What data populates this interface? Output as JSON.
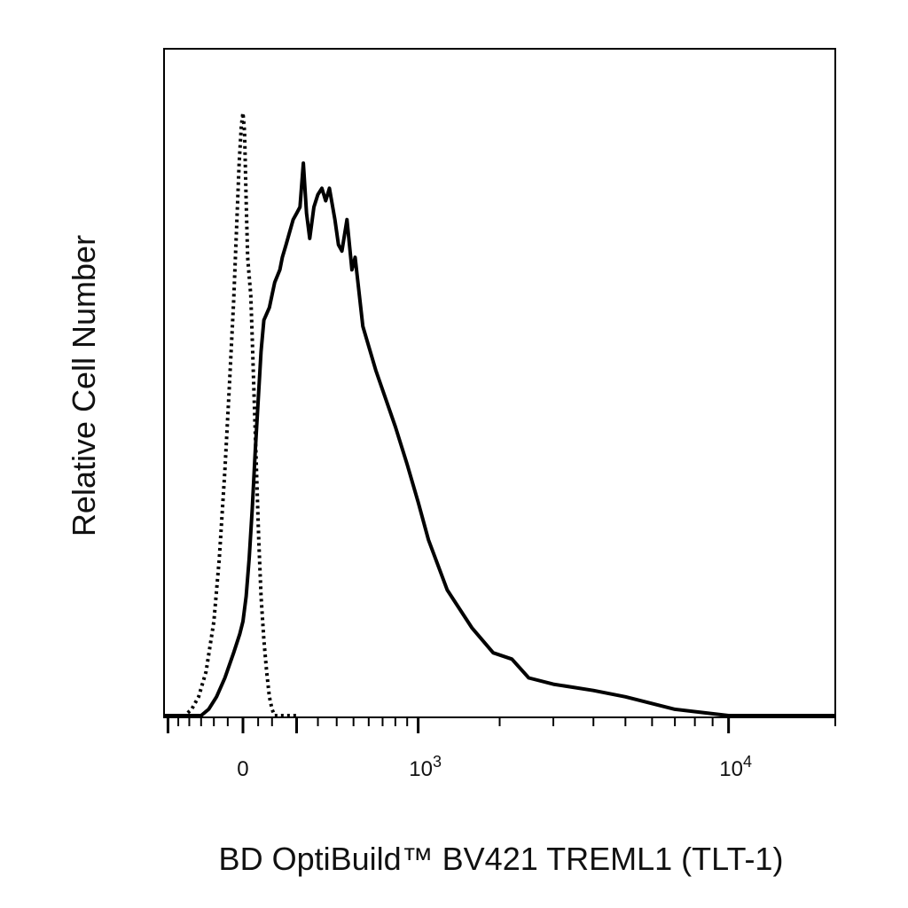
{
  "chart_data": {
    "type": "line",
    "xlabel": "BD OptiBuild™ BV421 TREML1 (TLT-1)",
    "ylabel": "Relative Cell Number",
    "x_scale": "biexponential",
    "xlim": [
      -320,
      20000
    ],
    "ylim": [
      0,
      100
    ],
    "grid": false,
    "x_tick_labels": [
      {
        "value": 0,
        "label": "0"
      },
      {
        "value": 1000,
        "base": "10",
        "exp": "3"
      },
      {
        "value": 10000,
        "base": "10",
        "exp": "4"
      }
    ],
    "series": [
      {
        "style": "dotted",
        "points": [
          [
            -320,
            0
          ],
          [
            -220,
            0
          ],
          [
            -190,
            1
          ],
          [
            -160,
            3
          ],
          [
            -130,
            7
          ],
          [
            -100,
            15
          ],
          [
            -80,
            25
          ],
          [
            -60,
            39
          ],
          [
            -45,
            52
          ],
          [
            -30,
            66
          ],
          [
            -20,
            78
          ],
          [
            -12,
            88
          ],
          [
            -5,
            94
          ],
          [
            0,
            96
          ],
          [
            5,
            93
          ],
          [
            10,
            82
          ],
          [
            15,
            73
          ],
          [
            20,
            70
          ],
          [
            25,
            67
          ],
          [
            30,
            60
          ],
          [
            38,
            48
          ],
          [
            45,
            38
          ],
          [
            52,
            28
          ],
          [
            60,
            19
          ],
          [
            70,
            12
          ],
          [
            80,
            7
          ],
          [
            90,
            3
          ],
          [
            100,
            1
          ],
          [
            110,
            0
          ],
          [
            150,
            0
          ],
          [
            200,
            0
          ]
        ]
      },
      {
        "style": "solid",
        "points": [
          [
            -320,
            0
          ],
          [
            -150,
            0
          ],
          [
            -120,
            1
          ],
          [
            -90,
            3
          ],
          [
            -60,
            6
          ],
          [
            -30,
            10
          ],
          [
            -10,
            13
          ],
          [
            0,
            15
          ],
          [
            10,
            19
          ],
          [
            20,
            25
          ],
          [
            30,
            33
          ],
          [
            40,
            42
          ],
          [
            50,
            50
          ],
          [
            60,
            58
          ],
          [
            70,
            63
          ],
          [
            80,
            64
          ],
          [
            90,
            65
          ],
          [
            100,
            67
          ],
          [
            110,
            69
          ],
          [
            120,
            70
          ],
          [
            130,
            71
          ],
          [
            140,
            73
          ],
          [
            155,
            75
          ],
          [
            170,
            77
          ],
          [
            185,
            79
          ],
          [
            200,
            80
          ],
          [
            215,
            81
          ],
          [
            230,
            88
          ],
          [
            245,
            80
          ],
          [
            260,
            76
          ],
          [
            280,
            81
          ],
          [
            300,
            83
          ],
          [
            320,
            84
          ],
          [
            340,
            82
          ],
          [
            360,
            84
          ],
          [
            390,
            79
          ],
          [
            410,
            75
          ],
          [
            430,
            74
          ],
          [
            460,
            79
          ],
          [
            490,
            71
          ],
          [
            510,
            73
          ],
          [
            560,
            62
          ],
          [
            650,
            55
          ],
          [
            800,
            46
          ],
          [
            900,
            40
          ],
          [
            1000,
            34
          ],
          [
            1100,
            28
          ],
          [
            1300,
            20
          ],
          [
            1600,
            14
          ],
          [
            1900,
            10
          ],
          [
            2200,
            9
          ],
          [
            2500,
            6
          ],
          [
            3000,
            5
          ],
          [
            4000,
            4
          ],
          [
            5000,
            3
          ],
          [
            7000,
            1
          ],
          [
            10000,
            0
          ],
          [
            20000,
            0
          ]
        ]
      }
    ]
  }
}
